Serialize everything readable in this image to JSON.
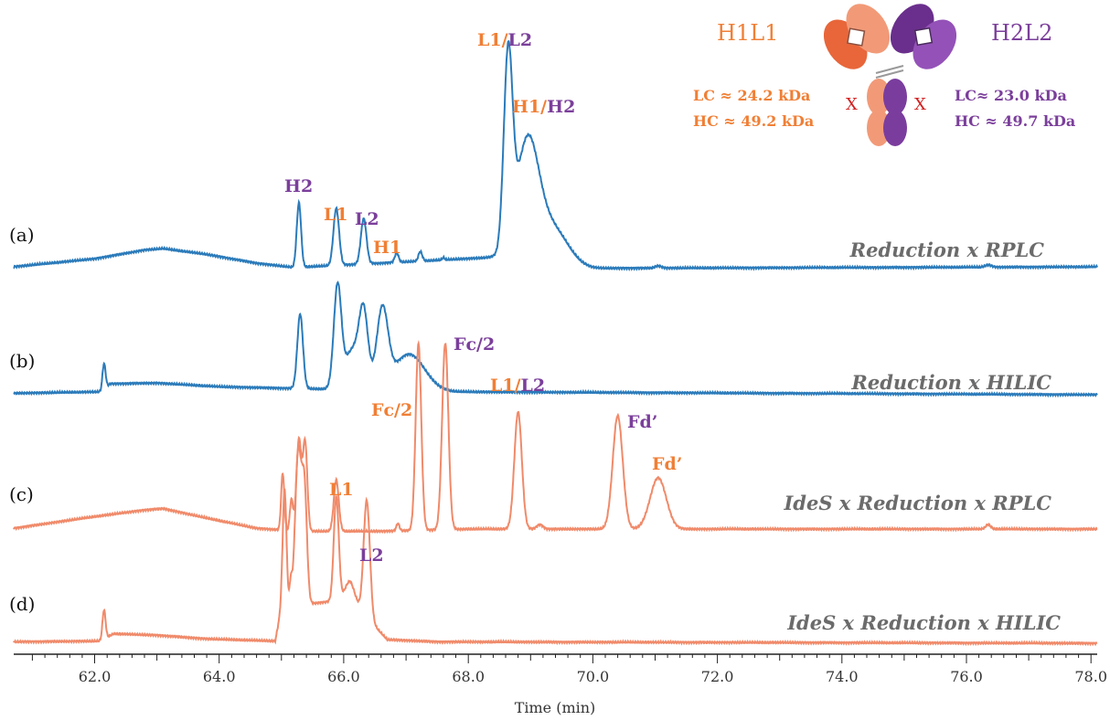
{
  "chart_data": {
    "type": "line",
    "title": "",
    "xlabel": "Time (min)",
    "xlim": [
      60.7,
      78.1
    ],
    "x_ticks": [
      "62.0",
      "64.0",
      "66.0",
      "68.0",
      "70.0",
      "72.0",
      "74.0",
      "76.0",
      "78.0"
    ],
    "grid": false,
    "colors": {
      "blue": "#2b7bba",
      "salmon": "#f08a6a",
      "orange": "#f07f35",
      "purple": "#7b3f9b",
      "red": "#d21f1f"
    },
    "series": [
      {
        "tag": "(a)",
        "name": "Reduction x RPLC",
        "color": "#2b7bba",
        "baseline": [
          [
            60.7,
            0.05
          ],
          [
            62.0,
            0.16
          ],
          [
            62.8,
            0.28
          ],
          [
            63.1,
            0.3
          ],
          [
            63.8,
            0.22
          ],
          [
            64.6,
            0.1
          ],
          [
            65.2,
            0.04
          ],
          [
            68.4,
            0.18
          ],
          [
            69.2,
            0.08
          ],
          [
            70.0,
            0.03
          ],
          [
            78.1,
            0.05
          ]
        ],
        "peaks": [
          {
            "t": 65.28,
            "h": 0.88,
            "w": 0.035
          },
          {
            "t": 65.88,
            "h": 0.78,
            "w": 0.045
          },
          {
            "t": 66.32,
            "h": 0.62,
            "w": 0.045
          },
          {
            "t": 66.85,
            "h": 0.13,
            "w": 0.03
          },
          {
            "t": 67.23,
            "h": 0.13,
            "w": 0.03
          },
          {
            "t": 67.6,
            "h": 0.03,
            "w": 0.02
          },
          {
            "t": 68.64,
            "h": 2.6,
            "w": 0.07
          },
          {
            "t": 68.95,
            "h": 1.6,
            "w": 0.18
          },
          {
            "t": 69.35,
            "h": 0.5,
            "w": 0.25
          },
          {
            "t": 71.05,
            "h": 0.03,
            "w": 0.05
          },
          {
            "t": 76.35,
            "h": 0.03,
            "w": 0.05
          }
        ]
      },
      {
        "tag": "(b)",
        "name": "Reduction x HILIC",
        "color": "#2b7bba",
        "baseline": [
          [
            60.7,
            0.02
          ],
          [
            62.1,
            0.04
          ],
          [
            62.25,
            0.15
          ],
          [
            63.0,
            0.16
          ],
          [
            64.0,
            0.11
          ],
          [
            65.0,
            0.09
          ],
          [
            67.8,
            0.04
          ],
          [
            78.1,
            0.0
          ]
        ],
        "peaks": [
          {
            "t": 62.15,
            "h": 0.35,
            "w": 0.025
          },
          {
            "t": 65.3,
            "h": 1.02,
            "w": 0.045
          },
          {
            "t": 65.9,
            "h": 1.35,
            "w": 0.06
          },
          {
            "t": 66.15,
            "h": 0.55,
            "w": 0.14
          },
          {
            "t": 66.32,
            "h": 0.9,
            "w": 0.07
          },
          {
            "t": 66.62,
            "h": 1.05,
            "w": 0.09
          },
          {
            "t": 67.05,
            "h": 0.5,
            "w": 0.25
          }
        ]
      },
      {
        "tag": "(c)",
        "name": "IdeS x Reduction x RPLC",
        "color": "#f08a6a",
        "baseline": [
          [
            60.7,
            0.06
          ],
          [
            62.0,
            0.22
          ],
          [
            62.8,
            0.31
          ],
          [
            63.1,
            0.33
          ],
          [
            63.8,
            0.2
          ],
          [
            64.6,
            0.06
          ],
          [
            65.3,
            0.02
          ],
          [
            66.6,
            0.02
          ],
          [
            68.0,
            0.05
          ],
          [
            78.1,
            0.05
          ]
        ],
        "peaks": [
          {
            "t": 65.02,
            "h": 0.78,
            "w": 0.025
          },
          {
            "t": 65.16,
            "h": 0.42,
            "w": 0.025
          },
          {
            "t": 65.28,
            "h": 1.25,
            "w": 0.04
          },
          {
            "t": 65.38,
            "h": 1.2,
            "w": 0.035
          },
          {
            "t": 65.88,
            "h": 0.7,
            "w": 0.04
          },
          {
            "t": 66.87,
            "h": 0.1,
            "w": 0.025
          },
          {
            "t": 67.2,
            "h": 2.55,
            "w": 0.045
          },
          {
            "t": 67.63,
            "h": 2.55,
            "w": 0.05
          },
          {
            "t": 68.8,
            "h": 1.6,
            "w": 0.06
          },
          {
            "t": 69.15,
            "h": 0.06,
            "w": 0.05
          },
          {
            "t": 70.4,
            "h": 1.55,
            "w": 0.08
          },
          {
            "t": 71.05,
            "h": 0.7,
            "w": 0.13
          },
          {
            "t": 76.35,
            "h": 0.06,
            "w": 0.04
          }
        ]
      },
      {
        "tag": "(d)",
        "name": "IdeS x Reduction x HILIC",
        "color": "#f08a6a",
        "baseline": [
          [
            60.7,
            0.02
          ],
          [
            62.1,
            0.03
          ],
          [
            62.3,
            0.13
          ],
          [
            63.0,
            0.11
          ],
          [
            63.8,
            0.06
          ],
          [
            64.9,
            0.03
          ],
          [
            65.0,
            0.5
          ],
          [
            66.1,
            0.6
          ],
          [
            66.7,
            0.05
          ],
          [
            67.5,
            0.02
          ],
          [
            78.1,
            0.0
          ]
        ],
        "peaks": [
          {
            "t": 62.15,
            "h": 0.4,
            "w": 0.025
          },
          {
            "t": 65.05,
            "h": 1.6,
            "w": 0.03
          },
          {
            "t": 65.15,
            "h": 0.3,
            "w": 0.02
          },
          {
            "t": 65.27,
            "h": 2.1,
            "w": 0.05
          },
          {
            "t": 65.37,
            "h": 1.5,
            "w": 0.04
          },
          {
            "t": 65.88,
            "h": 1.42,
            "w": 0.04
          },
          {
            "t": 66.1,
            "h": 0.25,
            "w": 0.08
          },
          {
            "t": 66.37,
            "h": 1.6,
            "w": 0.05
          }
        ]
      }
    ],
    "annotations": [
      {
        "text": "H2",
        "x": 65.22,
        "y": -0.18,
        "row": 0,
        "color": "purple"
      },
      {
        "text": "L1",
        "x": 65.88,
        "y": -0.1,
        "row": 0,
        "color": "orange"
      },
      {
        "text": "L2",
        "x": 66.4,
        "y": -0.02,
        "row": 0,
        "color": "purple"
      },
      {
        "text": "H1",
        "x": 67.0,
        "y": 0.26,
        "row": 0,
        "color": "orange"
      },
      {
        "text": "Fc/2",
        "x": 66.75,
        "y": -0.06,
        "row": 2,
        "color": "orange"
      },
      {
        "text": "Fc/2",
        "x": 68.05,
        "y": -1.1,
        "row": 1,
        "color": "purple"
      },
      {
        "text": "L1",
        "x": 70.45,
        "y": -0.08,
        "row": 2,
        "color": "purple"
      },
      {
        "text": "Fd’",
        "x": 71.2,
        "y": -0.45,
        "row": 2,
        "color": "orange"
      },
      {
        "text": "L1",
        "x": 65.9,
        "y": 0.46,
        "row": 2,
        "color": "orange"
      },
      {
        "text": "L2",
        "x": 66.4,
        "y": -0.15,
        "row": 3,
        "color": "purple"
      }
    ],
    "peak_labels": {
      "a_l1l2": {
        "a": "L1",
        "sep": "/",
        "b": "L2"
      },
      "a_h1h2": {
        "a": "H1",
        "sep": "/",
        "b": "H2"
      },
      "b_l1l2": {
        "a": "L1",
        "sep": "/",
        "b": "L2"
      }
    }
  },
  "legend": {
    "h1l1": "H1L1",
    "h2l2": "H2L2",
    "lc1": "LC ≈ 24.2 kDa",
    "hc1": "HC ≈ 49.2 kDa",
    "lc2": "LC≈ 23.0 kDa",
    "hc2": "HC ≈ 49.7 kDa",
    "cross": "X"
  }
}
